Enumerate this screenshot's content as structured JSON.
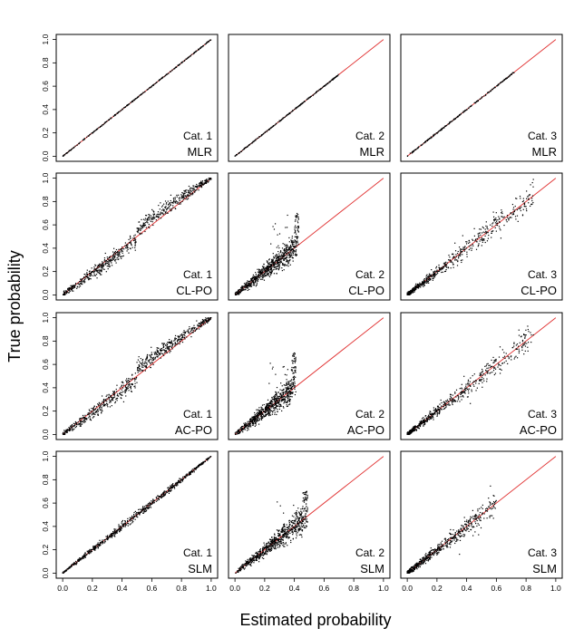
{
  "chart_data": {
    "type": "scatter",
    "layout": "grid 4 rows x 3 columns",
    "xlabel": "Estimated probability",
    "ylabel": "True probability",
    "xlim": [
      0,
      1
    ],
    "ylim": [
      0,
      1
    ],
    "x_ticks": [
      "0.0",
      "0.2",
      "0.4",
      "0.6",
      "0.8",
      "1.0"
    ],
    "y_ticks": [
      "0.0",
      "0.2",
      "0.4",
      "0.6",
      "0.8",
      "1.0"
    ],
    "reference_line": {
      "from": [
        0,
        0
      ],
      "to": [
        1,
        1
      ],
      "color": "#e03030"
    },
    "point_color": "#000000",
    "panels": [
      {
        "category": "Cat. 1",
        "method": "MLR",
        "pattern": "identity",
        "x_max": 1.0,
        "spread": 0.004,
        "n": 300
      },
      {
        "category": "Cat. 2",
        "method": "MLR",
        "pattern": "identity",
        "x_max": 0.7,
        "spread": 0.004,
        "n": 260
      },
      {
        "category": "Cat. 3",
        "method": "MLR",
        "pattern": "identity",
        "x_max": 0.72,
        "spread": 0.005,
        "n": 240
      },
      {
        "category": "Cat. 1",
        "method": "CL-PO",
        "pattern": "s-curve",
        "x_max": 1.0,
        "spread": 0.05,
        "n": 700
      },
      {
        "category": "Cat. 2",
        "method": "CL-PO",
        "pattern": "capped",
        "x_max": 0.43,
        "spread": 0.08,
        "n": 750
      },
      {
        "category": "Cat. 3",
        "method": "CL-PO",
        "pattern": "fan",
        "x_max": 0.85,
        "spread": 0.06,
        "n": 600
      },
      {
        "category": "Cat. 1",
        "method": "AC-PO",
        "pattern": "s-curve",
        "x_max": 1.0,
        "spread": 0.05,
        "n": 700
      },
      {
        "category": "Cat. 2",
        "method": "AC-PO",
        "pattern": "capped",
        "x_max": 0.41,
        "spread": 0.08,
        "n": 750
      },
      {
        "category": "Cat. 3",
        "method": "AC-PO",
        "pattern": "fan",
        "x_max": 0.85,
        "spread": 0.06,
        "n": 600
      },
      {
        "category": "Cat. 1",
        "method": "SLM",
        "pattern": "mild",
        "x_max": 1.0,
        "spread": 0.025,
        "n": 700
      },
      {
        "category": "Cat. 2",
        "method": "SLM",
        "pattern": "capped",
        "x_max": 0.49,
        "spread": 0.07,
        "n": 750
      },
      {
        "category": "Cat. 3",
        "method": "SLM",
        "pattern": "fan",
        "x_max": 0.6,
        "spread": 0.06,
        "n": 600
      }
    ]
  }
}
